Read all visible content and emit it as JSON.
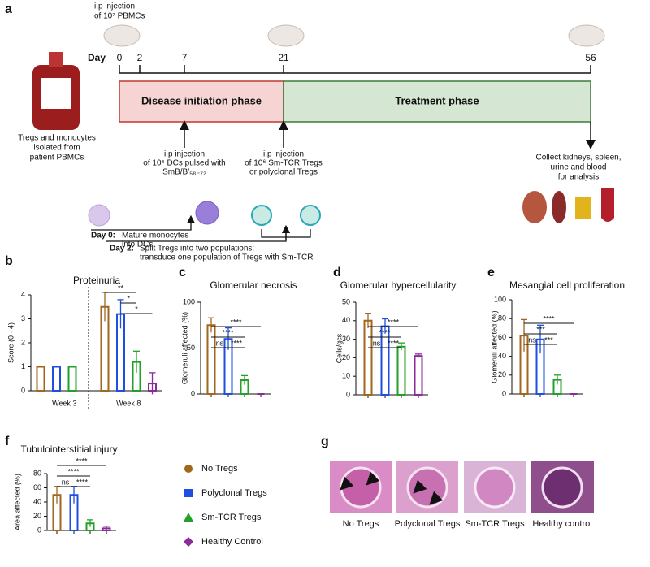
{
  "panel_labels": [
    "a",
    "b",
    "c",
    "d",
    "e",
    "f",
    "g"
  ],
  "timeline": {
    "injection_top": [
      "i.p injection",
      "of 10⁷ PBMCs"
    ],
    "day_label": "Day",
    "days": [
      0,
      2,
      7,
      21,
      56
    ],
    "phases": [
      "Disease initiation phase",
      "Treatment phase"
    ],
    "source": [
      "Tregs and monocytes",
      "isolated from",
      "patient PBMCs"
    ],
    "dc_injection": [
      "i.p injection",
      "of 10⁵ DCs pulsed with",
      "SmB/B′₅₈₋₇₂"
    ],
    "treg_injection": [
      "i.p injection",
      "of 10⁶ Sm-TCR Tregs",
      "or polyclonal Tregs"
    ],
    "collect": [
      "Collect kidneys, spleen,",
      "urine and blood",
      "for analysis"
    ],
    "day0": {
      "label": "Day 0:",
      "text": [
        "Mature monocytes",
        "into DCs"
      ]
    },
    "day2": {
      "label": "Day 2:",
      "text": [
        "Split Tregs into two populations:",
        "transduce one population of Tregs with Sm-TCR"
      ]
    }
  },
  "chart_data": [
    {
      "type": "grouped_bar",
      "title": "Proteinuria",
      "y_label": "Score (0 - 4)",
      "categories": [
        "Week 3",
        "Week 8"
      ],
      "series": [
        {
          "name": "No Tregs",
          "color": "#a2661c",
          "marker": "circle",
          "values": [
            1,
            3.5
          ],
          "errors": [
            0,
            0.6
          ]
        },
        {
          "name": "Polyclonal Tregs",
          "color": "#1f4fe0",
          "marker": "square",
          "values": [
            1,
            3.2
          ],
          "errors": [
            0,
            0.6
          ]
        },
        {
          "name": "Sm-TCR Tregs",
          "color": "#22a12a",
          "marker": "triangle",
          "values": [
            1,
            1.2
          ],
          "errors": [
            0,
            0.45
          ]
        },
        {
          "name": "Healthy Control",
          "color": "#8b2a9b",
          "marker": "diamond",
          "values": [
            null,
            0.3
          ],
          "errors": [
            null,
            0.45
          ]
        }
      ],
      "ylim": [
        0,
        4
      ],
      "yticks": [
        0,
        1,
        2,
        3,
        4
      ],
      "annotations": [
        {
          "label": "**",
          "between": [
            0,
            2
          ]
        },
        {
          "label": "*",
          "between": [
            1,
            2
          ]
        },
        {
          "label": "*",
          "between": [
            1,
            3
          ]
        }
      ]
    },
    {
      "type": "bar",
      "title": "Glomerular necrosis",
      "y_label": "Glomeruli affected (%)",
      "categories": [
        null,
        null,
        null,
        null
      ],
      "values": [
        75,
        60,
        15,
        0
      ],
      "errors": [
        8,
        12,
        5,
        0
      ],
      "colors": [
        "#a2661c",
        "#1f4fe0",
        "#22a12a",
        "#8b2a9b"
      ],
      "ylim": [
        0,
        100
      ],
      "yticks": [
        0,
        50,
        100
      ],
      "annotations": [
        {
          "label": "****",
          "between": [
            0,
            3
          ]
        },
        {
          "label": "****",
          "between": [
            0,
            2
          ]
        },
        {
          "label": "ns",
          "between": [
            0,
            1
          ]
        },
        {
          "label": "****",
          "between": [
            1,
            2
          ]
        }
      ]
    },
    {
      "type": "bar",
      "title": "Glomerular hypercellularity",
      "y_label": "Cells/gcs",
      "categories": [
        null,
        null,
        null,
        null
      ],
      "values": [
        40,
        37,
        26,
        21
      ],
      "errors": [
        4,
        4,
        2,
        1
      ],
      "colors": [
        "#a2661c",
        "#1f4fe0",
        "#22a12a",
        "#8b2a9b"
      ],
      "ylim": [
        0,
        50
      ],
      "yticks": [
        0,
        10,
        20,
        30,
        40,
        50
      ],
      "annotations": [
        {
          "label": "****",
          "between": [
            0,
            3
          ]
        },
        {
          "label": "****",
          "between": [
            0,
            2
          ]
        },
        {
          "label": "ns",
          "between": [
            0,
            1
          ]
        },
        {
          "label": "****",
          "between": [
            1,
            2
          ]
        }
      ]
    },
    {
      "type": "bar",
      "title": "Mesangial cell proliferation",
      "y_label": "Glomeruli affected (%)",
      "categories": [
        null,
        null,
        null,
        null
      ],
      "values": [
        62,
        58,
        15,
        0
      ],
      "errors": [
        17,
        15,
        5,
        0
      ],
      "colors": [
        "#a2661c",
        "#1f4fe0",
        "#22a12a",
        "#8b2a9b"
      ],
      "ylim": [
        0,
        100
      ],
      "yticks": [
        0,
        20,
        40,
        60,
        80,
        100
      ],
      "annotations": [
        {
          "label": "****",
          "between": [
            0,
            3
          ]
        },
        {
          "label": "***",
          "between": [
            0,
            2
          ]
        },
        {
          "label": "ns",
          "between": [
            0,
            1
          ]
        },
        {
          "label": "***",
          "between": [
            1,
            2
          ]
        }
      ]
    },
    {
      "type": "bar",
      "title": "Tubulointerstitial injury",
      "y_label": "Area affected (%)",
      "categories": [
        null,
        null,
        null,
        null
      ],
      "values": [
        50,
        50,
        10,
        3
      ],
      "errors": [
        12,
        12,
        5,
        3
      ],
      "colors": [
        "#a2661c",
        "#1f4fe0",
        "#22a12a",
        "#8b2a9b"
      ],
      "ylim": [
        0,
        80
      ],
      "yticks": [
        0,
        20,
        40,
        60,
        80
      ],
      "annotations": [
        {
          "label": "****",
          "between": [
            0,
            3
          ]
        },
        {
          "label": "****",
          "between": [
            0,
            2
          ]
        },
        {
          "label": "ns",
          "between": [
            0,
            1
          ]
        },
        {
          "label": "****",
          "between": [
            1,
            2
          ]
        }
      ]
    }
  ],
  "histology": {
    "labels": [
      "No Tregs",
      "Polyclonal Tregs",
      "Sm-TCR Tregs",
      "Healthy control"
    ]
  }
}
